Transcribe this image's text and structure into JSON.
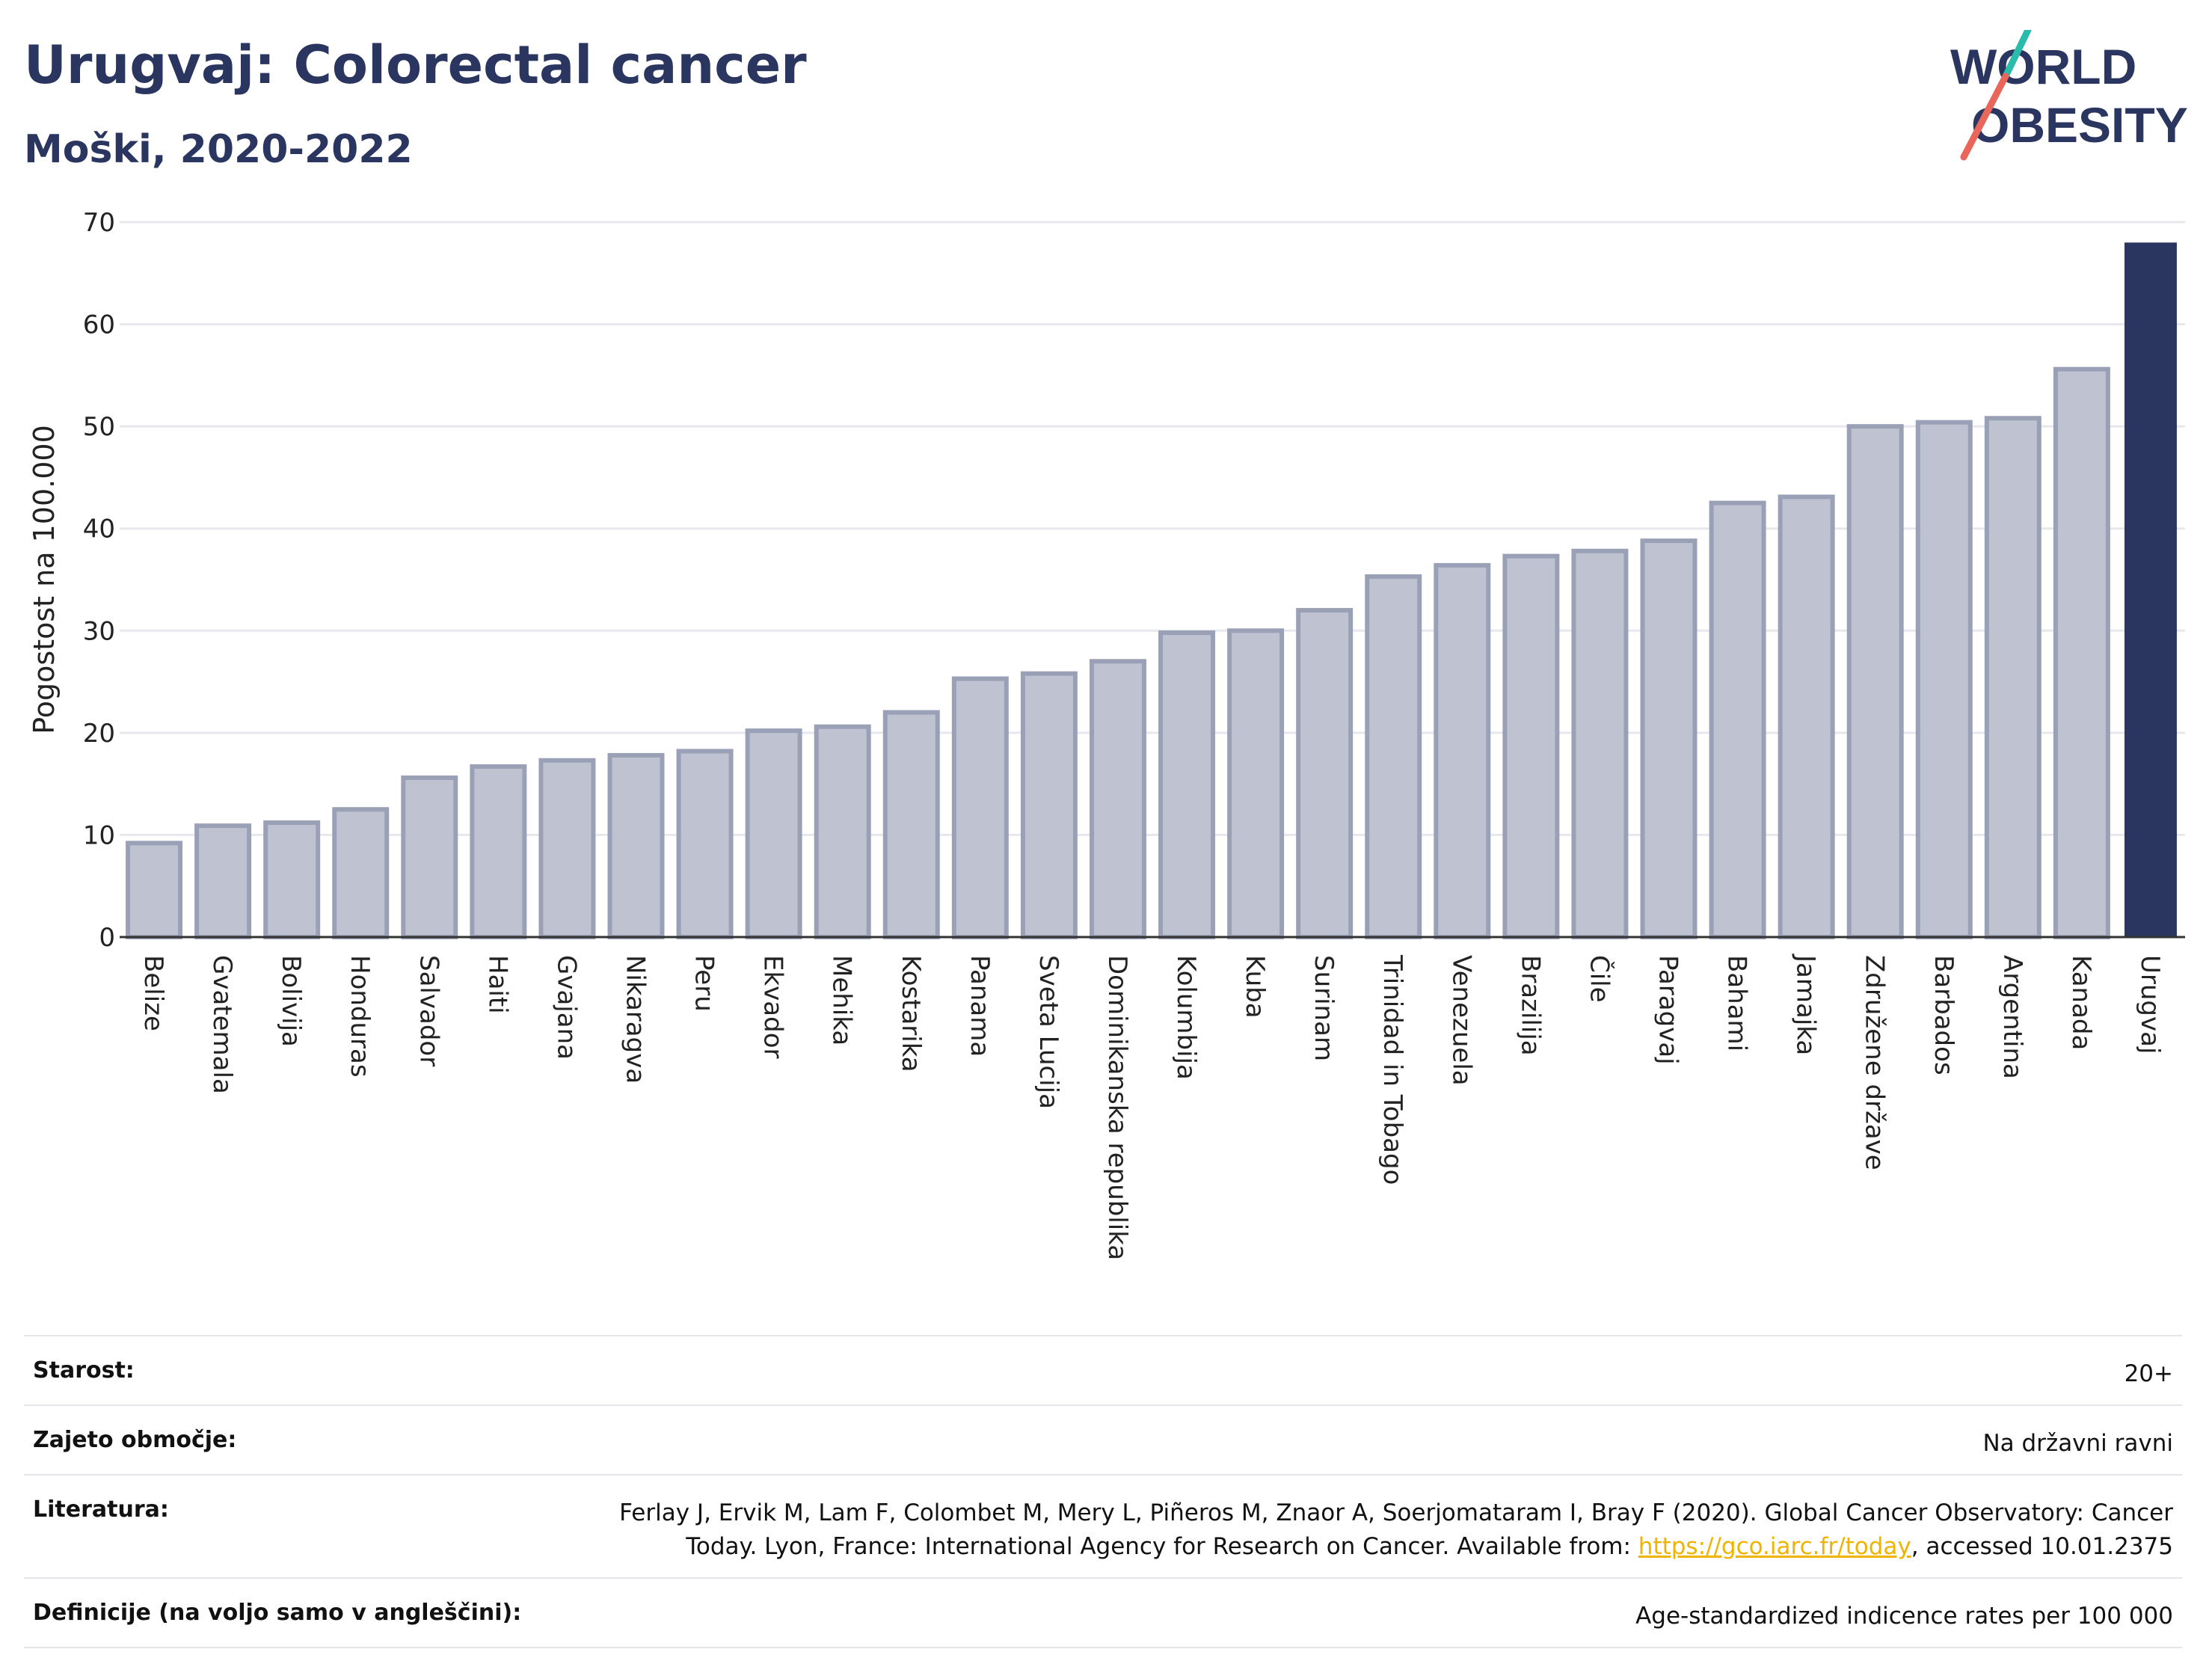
{
  "header": {
    "title": "Urugvaj: Colorectal cancer",
    "subtitle": "Moški, 2020-2022"
  },
  "logo": {
    "line1": "WORLD",
    "line2": "OBESITY",
    "accent_teal": "#2bbbad",
    "accent_coral": "#e8675a"
  },
  "colors": {
    "bar": "#bfc3d1",
    "bar_edge": "#9aa0b6",
    "highlight": "#2a3560",
    "grid": "#e6e8ee"
  },
  "chart_data": {
    "type": "bar",
    "ylabel": "Pogostost na 100.000",
    "ylim": [
      0,
      70
    ],
    "yticks": [
      0,
      10,
      20,
      30,
      40,
      50,
      60,
      70
    ],
    "highlight": "Urugvaj",
    "categories": [
      "Belize",
      "Gvatemala",
      "Bolivija",
      "Honduras",
      "Salvador",
      "Haiti",
      "Gvajana",
      "Nikaragva",
      "Peru",
      "Ekvador",
      "Mehika",
      "Kostarika",
      "Panama",
      "Sveta Lucija",
      "Dominikanska republika",
      "Kolumbija",
      "Kuba",
      "Surinam",
      "Trinidad in Tobago",
      "Venezuela",
      "Brazilija",
      "Čile",
      "Paragvaj",
      "Bahami",
      "Jamajka",
      "Združene države",
      "Barbados",
      "Argentina",
      "Kanada",
      "Urugvaj"
    ],
    "values": [
      9.2,
      10.9,
      11.2,
      12.5,
      15.6,
      16.7,
      17.3,
      17.8,
      18.2,
      20.2,
      20.6,
      22.0,
      25.3,
      25.8,
      27.0,
      29.8,
      30.0,
      32.0,
      35.3,
      36.4,
      37.3,
      37.8,
      38.8,
      42.5,
      43.1,
      50.0,
      50.4,
      50.8,
      55.6,
      68.0
    ]
  },
  "footer": {
    "age_label": "Starost:",
    "age_value": "20+",
    "area_label": "Zajeto območje:",
    "area_value": "Na državni ravni",
    "lit_label": "Literatura:",
    "lit_text1": "Ferlay J, Ervik M, Lam F, Colombet M, Mery L, Piñeros M, Znaor A, Soerjomataram I, Bray F (2020). Global Cancer Observatory: Cancer Today. Lyon, France: International Agency for Research on Cancer. Available from: ",
    "lit_link": "https://gco.iarc.fr/today",
    "lit_text2": ", accessed 10.01.2375",
    "def_label": "Definicije (na voljo samo v angleščini):",
    "def_value": "Age-standardized indicence rates per 100 000"
  }
}
